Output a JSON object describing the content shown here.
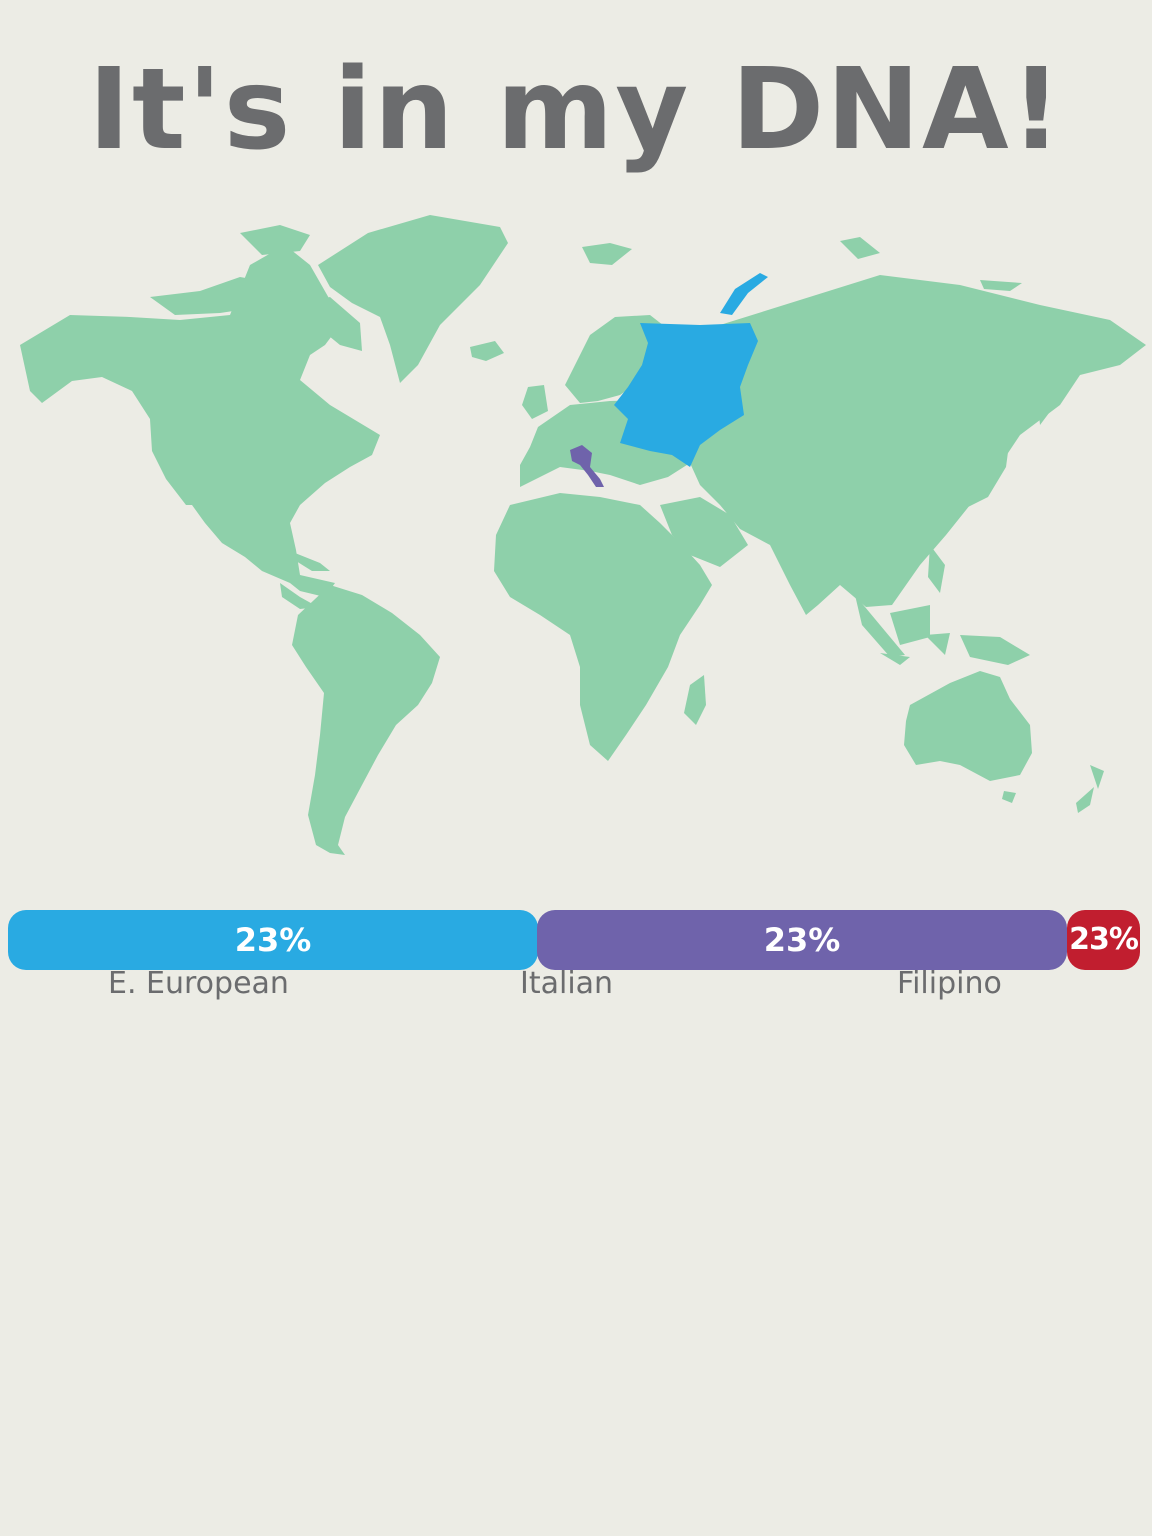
{
  "title": "It's in my DNA!",
  "colors": {
    "background": "#ecece5",
    "land": "#8ed0aa",
    "title_text": "#6b6c6e",
    "label_text": "#6b6c6e",
    "bar_text": "#ffffff"
  },
  "ancestry": [
    {
      "label": "E. European",
      "value": "23%",
      "color": "#29aae2",
      "region_icon": "eastern-europe-region"
    },
    {
      "label": "Italian",
      "value": "23%",
      "color": "#6f63ab",
      "region_icon": "italy-region"
    },
    {
      "label": "Filipino",
      "value": "23%",
      "color": "#c11e2f",
      "region_icon": ""
    }
  ]
}
